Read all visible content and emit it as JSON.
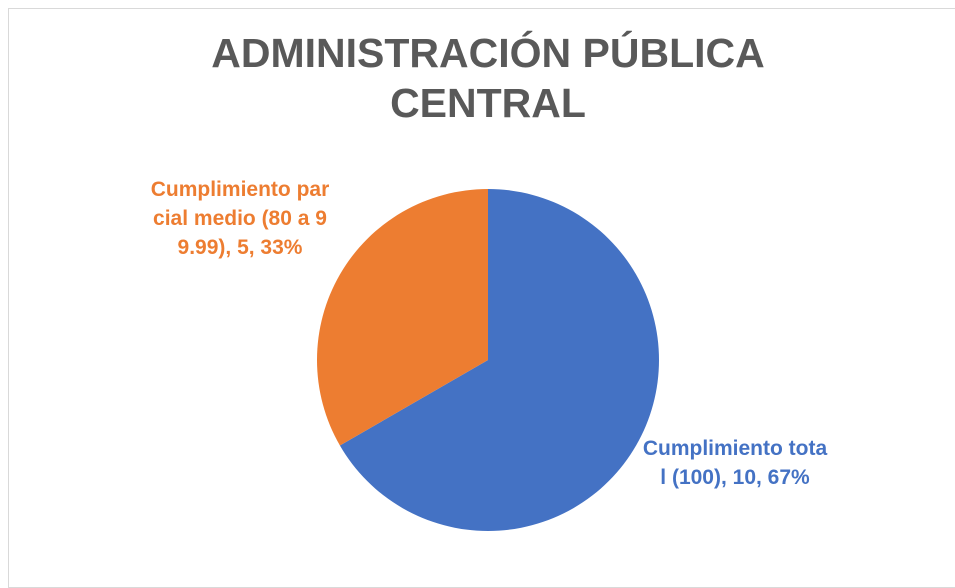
{
  "chart_data": {
    "type": "pie",
    "title": "ADMINISTRACIÓN PÚBLICA CENTRAL",
    "categories": [
      "Cumplimiento total (100)",
      "Cumplimiento parcial medio (80 a 99.99)"
    ],
    "values": [
      10,
      5
    ],
    "value_labels": [
      "Cumplimiento total (100), 10, 67%",
      "Cumplimiento parcial medio (80 a 99.99), 5, 33%"
    ],
    "colors": [
      "#4472c4",
      "#ed7d31"
    ]
  }
}
